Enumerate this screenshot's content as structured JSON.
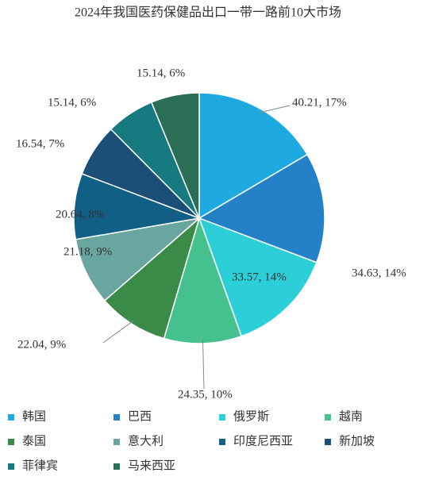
{
  "chart_data": {
    "type": "pie",
    "title": "2024年我国医药保健品出口一带一路前10大市场",
    "categories": [
      "韩国",
      "巴西",
      "俄罗斯",
      "越南",
      "泰国",
      "意大利",
      "印度尼西亚",
      "新加坡",
      "菲律宾",
      "马来西亚"
    ],
    "values": [
      40.21,
      34.63,
      33.57,
      24.35,
      22.04,
      21.18,
      20.64,
      16.54,
      15.14,
      15.14
    ],
    "value_labels": [
      "40.21, 17%",
      "34.63, 14%",
      "33.57, 14%",
      "24.35, 10%",
      "22.04, 9%",
      "21.18, 9%",
      "20.64, 8%",
      "16.54, 7%",
      "15.14, 6%",
      "15.14, 6%"
    ],
    "colors": [
      "#1fa9e1",
      "#2481c8",
      "#2ccfd8",
      "#45c08f",
      "#3a8a48",
      "#6aa6a0",
      "#125f86",
      "#1b4f77",
      "#177a80",
      "#2a6f55"
    ]
  }
}
